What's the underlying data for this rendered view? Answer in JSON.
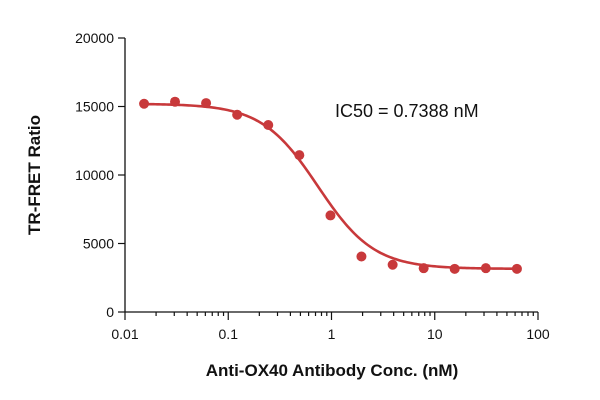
{
  "chart_data": {
    "type": "scatter",
    "title": "",
    "xlabel": "Anti-OX40 Antibody Conc. (nM)",
    "ylabel": "TR-FRET Ratio",
    "xscale": "log",
    "xlim": [
      0.01,
      100
    ],
    "ylim": [
      0,
      20000
    ],
    "x_ticks": [
      0.01,
      0.1,
      1,
      10,
      100
    ],
    "x_tick_labels": [
      "0.01",
      "0.1",
      "1",
      "10",
      "100"
    ],
    "y_ticks": [
      0,
      5000,
      10000,
      15000,
      20000
    ],
    "y_tick_labels": [
      "0",
      "5000",
      "10000",
      "15000",
      "20000"
    ],
    "grid": false,
    "legend": "none",
    "color": "#c8393b",
    "annotation": "IC50 = 0.7388 nM",
    "series": [
      {
        "x": [
          0.0153,
          0.0305,
          0.061,
          0.122,
          0.244,
          0.488,
          0.977,
          1.95,
          3.91,
          7.81,
          15.6,
          31.25,
          62.5
        ],
        "y": [
          15200,
          15350,
          15250,
          14400,
          13650,
          11450,
          7050,
          4050,
          3450,
          3200,
          3150,
          3200,
          3150
        ]
      }
    ],
    "fit": {
      "model": "4PL",
      "top": 15200,
      "bottom": 3150,
      "ic50": 0.7388,
      "hill": 1.6
    }
  }
}
